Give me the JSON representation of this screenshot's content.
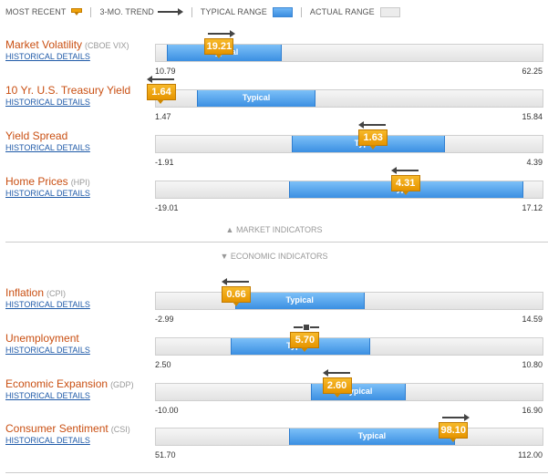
{
  "legend": {
    "most_recent": "MOST RECENT",
    "trend": "3-MO. TREND",
    "typical": "TYPICAL RANGE",
    "actual": "ACTUAL RANGE"
  },
  "colors": {
    "title": "#c94f12",
    "typical": "#3b8fe2",
    "marker": "#f0a30a",
    "link": "#1f5aa8"
  },
  "hist_label": "HISTORICAL DETAILS",
  "typical_label": "Typical",
  "market_toggle": "▲ MARKET INDICATORS",
  "economic_toggle": "▼ ECONOMIC INDICATORS",
  "indicators": [
    {
      "name": "Market Volatility",
      "sub": "(CBOE VIX)",
      "min": "10.79",
      "max": "62.25",
      "value": "19.21",
      "lo": 10.79,
      "hi": 62.25,
      "v": 19.21,
      "typ_lo": 12.3,
      "typ_hi": 27.5,
      "trend": "up"
    },
    {
      "name": "10 Yr. U.S. Treasury Yield",
      "sub": "",
      "min": "1.47",
      "max": "15.84",
      "value": "1.64",
      "lo": 1.47,
      "hi": 15.84,
      "v": 1.64,
      "typ_lo": 3.0,
      "typ_hi": 7.4,
      "trend": "down"
    },
    {
      "name": "Yield Spread",
      "sub": "",
      "min": "-1.91",
      "max": "4.39",
      "value": "1.63",
      "lo": -1.91,
      "hi": 4.39,
      "v": 1.63,
      "typ_lo": 0.3,
      "typ_hi": 2.8,
      "trend": "down"
    },
    {
      "name": "Home Prices",
      "sub": "(HPI)",
      "min": "-19.01",
      "max": "17.12",
      "value": "4.31",
      "lo": -19.01,
      "hi": 17.12,
      "v": 4.31,
      "typ_lo": -6.6,
      "typ_hi": 15.3,
      "trend": "down"
    },
    {
      "name": "Inflation",
      "sub": "(CPI)",
      "min": "-2.99",
      "max": "14.59",
      "value": "0.66",
      "lo": -2.99,
      "hi": 14.59,
      "v": 0.66,
      "typ_lo": 0.6,
      "typ_hi": 6.5,
      "trend": "down"
    },
    {
      "name": "Unemployment",
      "sub": "",
      "min": "2.50",
      "max": "10.80",
      "value": "5.70",
      "lo": 2.5,
      "hi": 10.8,
      "v": 5.7,
      "typ_lo": 4.1,
      "typ_hi": 7.1,
      "trend": "flat"
    },
    {
      "name": "Economic Expansion",
      "sub": "(GDP)",
      "min": "-10.00",
      "max": "16.90",
      "value": "2.60",
      "lo": -10.0,
      "hi": 16.9,
      "v": 2.6,
      "typ_lo": 0.8,
      "typ_hi": 7.4,
      "trend": "down"
    },
    {
      "name": "Consumer Sentiment",
      "sub": "(CSI)",
      "min": "51.70",
      "max": "112.00",
      "value": "98.10",
      "lo": 51.7,
      "hi": 112.0,
      "v": 98.1,
      "typ_lo": 72.5,
      "typ_hi": 98.3,
      "trend": "up"
    }
  ]
}
